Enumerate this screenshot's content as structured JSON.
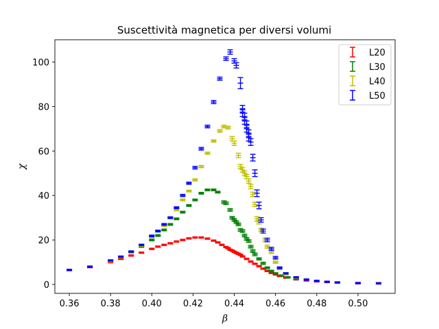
{
  "chart_data": {
    "type": "scatter",
    "title": "Suscettività magnetica per diversi volumi",
    "xlabel": "β",
    "ylabel": "χ",
    "xlim": [
      0.353,
      0.518
    ],
    "ylim": [
      -4,
      110
    ],
    "xticks": [
      0.36,
      0.38,
      0.4,
      0.42,
      0.44,
      0.46,
      0.48,
      0.5
    ],
    "xtick_labels": [
      "0.36",
      "0.38",
      "0.40",
      "0.42",
      "0.44",
      "0.46",
      "0.48",
      "0.50"
    ],
    "yticks": [
      0,
      20,
      40,
      60,
      80,
      100
    ],
    "ytick_labels": [
      "0",
      "20",
      "40",
      "60",
      "80",
      "100"
    ],
    "grid": false,
    "legend_position": "top-right",
    "errorbars": true,
    "series": [
      {
        "name": "L20",
        "color": "#ff0000",
        "points": [
          [
            0.36,
            6.5,
            0.3
          ],
          [
            0.37,
            7.8,
            0.3
          ],
          [
            0.38,
            10.0,
            0.3
          ],
          [
            0.385,
            11.5,
            0.3
          ],
          [
            0.39,
            13.0,
            0.3
          ],
          [
            0.395,
            14.3,
            0.3
          ],
          [
            0.4,
            16.0,
            0.3
          ],
          [
            0.403,
            17.0,
            0.3
          ],
          [
            0.406,
            17.8,
            0.3
          ],
          [
            0.409,
            18.5,
            0.3
          ],
          [
            0.412,
            19.3,
            0.3
          ],
          [
            0.415,
            20.0,
            0.3
          ],
          [
            0.418,
            20.7,
            0.3
          ],
          [
            0.421,
            21.1,
            0.3
          ],
          [
            0.424,
            21.1,
            0.3
          ],
          [
            0.427,
            20.6,
            0.3
          ],
          [
            0.43,
            19.7,
            0.3
          ],
          [
            0.432,
            18.9,
            0.3
          ],
          [
            0.434,
            17.8,
            0.3
          ],
          [
            0.436,
            16.8,
            0.3
          ],
          [
            0.437,
            16.3,
            0.3
          ],
          [
            0.438,
            15.6,
            0.3
          ],
          [
            0.439,
            15.2,
            0.3
          ],
          [
            0.44,
            14.7,
            0.3
          ],
          [
            0.441,
            14.2,
            0.3
          ],
          [
            0.442,
            13.8,
            0.3
          ],
          [
            0.443,
            13.3,
            0.3
          ],
          [
            0.444,
            12.6,
            0.3
          ],
          [
            0.446,
            11.5,
            0.3
          ],
          [
            0.448,
            10.3,
            0.3
          ],
          [
            0.45,
            9.3,
            0.3
          ],
          [
            0.452,
            8.2,
            0.3
          ],
          [
            0.454,
            7.1,
            0.3
          ],
          [
            0.456,
            6.1,
            0.3
          ],
          [
            0.458,
            5.2,
            0.3
          ],
          [
            0.46,
            4.5,
            0.3
          ],
          [
            0.462,
            3.8,
            0.3
          ],
          [
            0.465,
            3.1,
            0.3
          ],
          [
            0.47,
            2.3,
            0.3
          ],
          [
            0.475,
            1.8,
            0.3
          ],
          [
            0.48,
            1.4,
            0.3
          ],
          [
            0.485,
            1.1,
            0.3
          ],
          [
            0.49,
            0.9,
            0.3
          ],
          [
            0.5,
            0.6,
            0.3
          ],
          [
            0.51,
            0.5,
            0.3
          ]
        ]
      },
      {
        "name": "L30",
        "color": "#008000",
        "points": [
          [
            0.38,
            10.5,
            0.3
          ],
          [
            0.385,
            12.2,
            0.3
          ],
          [
            0.39,
            14.5,
            0.3
          ],
          [
            0.395,
            17.0,
            0.3
          ],
          [
            0.4,
            20.0,
            0.4
          ],
          [
            0.403,
            22.0,
            0.4
          ],
          [
            0.406,
            24.5,
            0.4
          ],
          [
            0.409,
            27.0,
            0.4
          ],
          [
            0.412,
            29.5,
            0.4
          ],
          [
            0.415,
            32.5,
            0.4
          ],
          [
            0.418,
            35.5,
            0.4
          ],
          [
            0.421,
            38.0,
            0.4
          ],
          [
            0.424,
            41.0,
            0.4
          ],
          [
            0.427,
            42.5,
            0.4
          ],
          [
            0.43,
            42.5,
            0.4
          ],
          [
            0.432,
            41.5,
            0.4
          ],
          [
            0.435,
            37.0,
            0.6
          ],
          [
            0.436,
            36.5,
            0.6
          ],
          [
            0.438,
            33.5,
            0.6
          ],
          [
            0.439,
            30.0,
            0.6
          ],
          [
            0.44,
            29.0,
            0.6
          ],
          [
            0.441,
            28.0,
            0.6
          ],
          [
            0.442,
            27.0,
            0.6
          ],
          [
            0.443,
            24.5,
            0.6
          ],
          [
            0.444,
            24.0,
            0.6
          ],
          [
            0.445,
            22.0,
            0.6
          ],
          [
            0.446,
            20.5,
            0.6
          ],
          [
            0.447,
            19.5,
            0.6
          ],
          [
            0.448,
            17.0,
            0.6
          ],
          [
            0.449,
            15.0,
            0.6
          ],
          [
            0.45,
            13.5,
            0.6
          ],
          [
            0.452,
            11.5,
            0.5
          ],
          [
            0.454,
            9.5,
            0.5
          ],
          [
            0.456,
            7.5,
            0.4
          ],
          [
            0.458,
            6.0,
            0.4
          ],
          [
            0.46,
            5.0,
            0.3
          ],
          [
            0.463,
            4.0,
            0.3
          ],
          [
            0.466,
            3.2,
            0.3
          ],
          [
            0.47,
            2.5,
            0.3
          ]
        ]
      },
      {
        "name": "L40",
        "color": "#bfbf00",
        "points": [
          [
            0.38,
            10.5,
            0.3
          ],
          [
            0.385,
            12.3,
            0.3
          ],
          [
            0.39,
            14.8,
            0.3
          ],
          [
            0.395,
            17.5,
            0.3
          ],
          [
            0.4,
            21.5,
            0.4
          ],
          [
            0.403,
            24.0,
            0.4
          ],
          [
            0.406,
            26.5,
            0.4
          ],
          [
            0.409,
            30.0,
            0.4
          ],
          [
            0.412,
            33.5,
            0.4
          ],
          [
            0.415,
            38.0,
            0.4
          ],
          [
            0.418,
            42.0,
            0.4
          ],
          [
            0.421,
            47.0,
            0.5
          ],
          [
            0.424,
            53.0,
            0.5
          ],
          [
            0.427,
            59.0,
            0.5
          ],
          [
            0.43,
            64.5,
            0.5
          ],
          [
            0.433,
            69.0,
            0.6
          ],
          [
            0.435,
            71.0,
            0.6
          ],
          [
            0.437,
            70.5,
            0.6
          ],
          [
            0.439,
            65.5,
            1.0
          ],
          [
            0.44,
            63.5,
            1.0
          ],
          [
            0.442,
            58.0,
            1.0
          ],
          [
            0.443,
            53.0,
            1.0
          ],
          [
            0.444,
            51.5,
            1.0
          ],
          [
            0.445,
            50.0,
            1.0
          ],
          [
            0.446,
            48.5,
            1.0
          ],
          [
            0.447,
            46.5,
            1.0
          ],
          [
            0.448,
            44.0,
            1.0
          ],
          [
            0.449,
            40.5,
            1.0
          ],
          [
            0.45,
            36.0,
            1.0
          ],
          [
            0.451,
            29.5,
            1.0
          ],
          [
            0.452,
            28.0,
            0.8
          ],
          [
            0.453,
            24.5,
            0.8
          ],
          [
            0.455,
            20.0,
            0.8
          ],
          [
            0.456,
            17.0,
            0.7
          ],
          [
            0.458,
            14.5,
            0.6
          ],
          [
            0.46,
            10.0,
            0.5
          ],
          [
            0.462,
            7.0,
            0.4
          ],
          [
            0.465,
            4.5,
            0.3
          ],
          [
            0.47,
            3.0,
            0.3
          ]
        ]
      },
      {
        "name": "L50",
        "color": "#0000ff",
        "points": [
          [
            0.36,
            6.5,
            0.3
          ],
          [
            0.37,
            8.0,
            0.3
          ],
          [
            0.38,
            10.8,
            0.3
          ],
          [
            0.385,
            12.5,
            0.3
          ],
          [
            0.39,
            14.8,
            0.3
          ],
          [
            0.395,
            17.8,
            0.3
          ],
          [
            0.4,
            21.8,
            0.4
          ],
          [
            0.403,
            24.0,
            0.4
          ],
          [
            0.406,
            27.0,
            0.4
          ],
          [
            0.409,
            30.0,
            0.4
          ],
          [
            0.412,
            34.5,
            0.4
          ],
          [
            0.415,
            40.0,
            0.5
          ],
          [
            0.418,
            45.5,
            0.5
          ],
          [
            0.421,
            52.5,
            0.6
          ],
          [
            0.424,
            61.0,
            0.6
          ],
          [
            0.427,
            71.0,
            0.6
          ],
          [
            0.43,
            82.0,
            0.7
          ],
          [
            0.433,
            92.5,
            0.7
          ],
          [
            0.436,
            101.5,
            0.8
          ],
          [
            0.438,
            104.5,
            1.0
          ],
          [
            0.44,
            100.5,
            1.0
          ],
          [
            0.441,
            98.5,
            1.2
          ],
          [
            0.443,
            90.5,
            2.5
          ],
          [
            0.444,
            79.0,
            1.5
          ],
          [
            0.444,
            77.0,
            1.5
          ],
          [
            0.445,
            75.5,
            1.5
          ],
          [
            0.445,
            73.5,
            1.5
          ],
          [
            0.446,
            72.0,
            1.5
          ],
          [
            0.446,
            70.0,
            1.5
          ],
          [
            0.447,
            68.0,
            1.5
          ],
          [
            0.447,
            66.0,
            1.5
          ],
          [
            0.448,
            64.0,
            1.5
          ],
          [
            0.449,
            57.0,
            1.5
          ],
          [
            0.45,
            50.0,
            1.5
          ],
          [
            0.451,
            41.0,
            1.5
          ],
          [
            0.452,
            35.5,
            1.5
          ],
          [
            0.453,
            29.0,
            1.0
          ],
          [
            0.454,
            24.0,
            0.9
          ],
          [
            0.456,
            20.0,
            0.8
          ],
          [
            0.458,
            16.0,
            0.7
          ],
          [
            0.46,
            12.0,
            0.6
          ],
          [
            0.462,
            7.5,
            0.4
          ],
          [
            0.465,
            5.0,
            0.3
          ],
          [
            0.47,
            3.2,
            0.3
          ],
          [
            0.475,
            2.2,
            0.3
          ],
          [
            0.48,
            1.6,
            0.3
          ],
          [
            0.485,
            1.2,
            0.3
          ],
          [
            0.49,
            0.9,
            0.3
          ],
          [
            0.5,
            0.6,
            0.3
          ],
          [
            0.51,
            0.5,
            0.3
          ]
        ]
      }
    ]
  }
}
